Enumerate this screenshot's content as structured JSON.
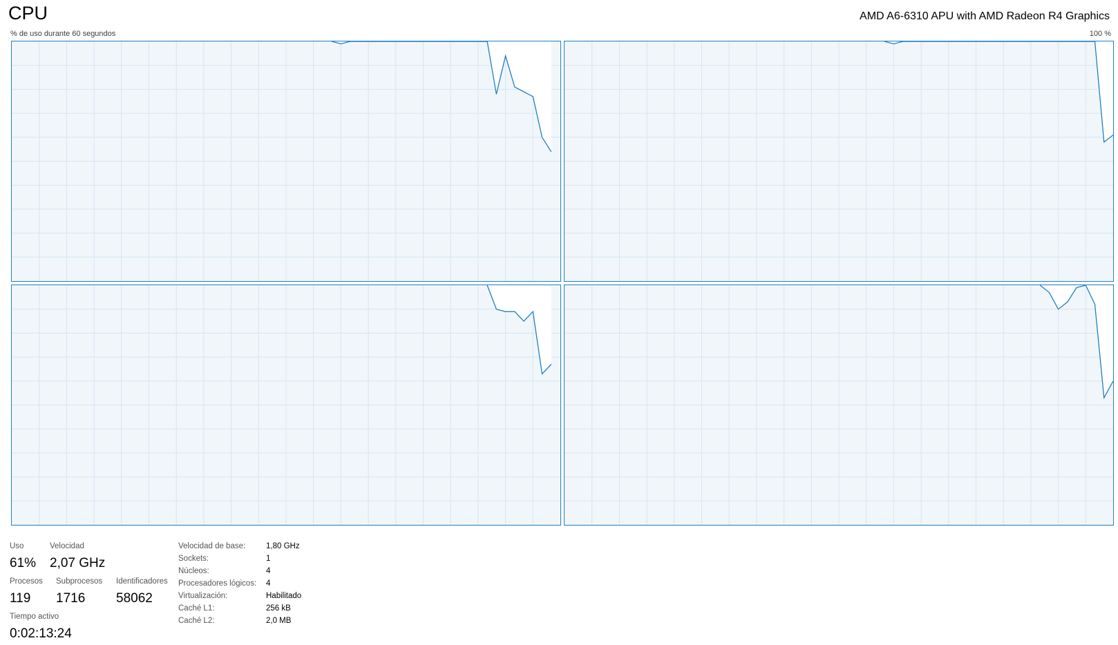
{
  "header": {
    "title": "CPU",
    "cpu_model": "AMD A6-6310 APU with AMD Radeon R4 Graphics",
    "axis_left_label": "% de uso durante 60 segundos",
    "axis_right_label": "100 %"
  },
  "colors": {
    "line": "#1f7fbf",
    "grid": "#d3e6f3",
    "fill": "#f1f6fa",
    "border": "#1f7fbf"
  },
  "chart_data": [
    {
      "type": "area",
      "name": "",
      "x_range": [
        0,
        60
      ],
      "ylim": [
        0,
        100
      ],
      "points": [
        [
          35,
          100
        ],
        [
          36,
          99
        ],
        [
          37,
          100
        ],
        [
          52,
          100
        ],
        [
          53,
          78
        ],
        [
          54,
          94
        ],
        [
          55,
          81
        ],
        [
          56,
          79
        ],
        [
          57,
          77
        ],
        [
          58,
          60
        ],
        [
          59,
          54
        ]
      ]
    },
    {
      "type": "area",
      "name": "",
      "x_range": [
        0,
        60
      ],
      "ylim": [
        0,
        100
      ],
      "points": [
        [
          35,
          100
        ],
        [
          36,
          99
        ],
        [
          37,
          100
        ],
        [
          58,
          100
        ],
        [
          59,
          58
        ],
        [
          60,
          61
        ]
      ]
    },
    {
      "type": "area",
      "name": "",
      "x_range": [
        0,
        60
      ],
      "ylim": [
        0,
        100
      ],
      "points": [
        [
          52,
          100
        ],
        [
          53,
          90
        ],
        [
          54,
          89
        ],
        [
          55,
          89
        ],
        [
          56,
          85
        ],
        [
          57,
          89
        ],
        [
          58,
          63
        ],
        [
          59,
          67
        ]
      ]
    },
    {
      "type": "area",
      "name": "",
      "x_range": [
        0,
        60
      ],
      "ylim": [
        0,
        100
      ],
      "points": [
        [
          52,
          100
        ],
        [
          53,
          97
        ],
        [
          54,
          90
        ],
        [
          55,
          93
        ],
        [
          56,
          99
        ],
        [
          57,
          100
        ],
        [
          58,
          92
        ],
        [
          59,
          53
        ],
        [
          60,
          60
        ]
      ]
    }
  ],
  "stats": {
    "uso_label": "Uso",
    "uso_value": "61%",
    "velocidad_label": "Velocidad",
    "velocidad_value": "2,07 GHz",
    "procesos_label": "Procesos",
    "procesos_value": "119",
    "subprocesos_label": "Subprocesos",
    "subprocesos_value": "1716",
    "identificadores_label": "Identificadores",
    "identificadores_value": "58062",
    "tiempo_label": "Tiempo activo",
    "tiempo_value": "0:02:13:24"
  },
  "properties": [
    {
      "label": "Velocidad de base:",
      "value": "1,80 GHz"
    },
    {
      "label": "Sockets:",
      "value": "1"
    },
    {
      "label": "Núcleos:",
      "value": "4"
    },
    {
      "label": "Procesadores lógicos:",
      "value": "4"
    },
    {
      "label": "Virtualización:",
      "value": "Habilitado"
    },
    {
      "label": "Caché L1:",
      "value": "256 kB"
    },
    {
      "label": "Caché L2:",
      "value": "2,0 MB"
    }
  ]
}
